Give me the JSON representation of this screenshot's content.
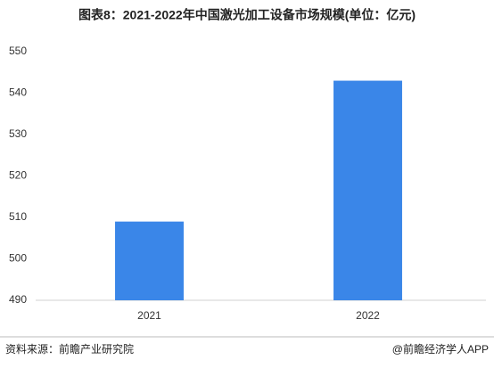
{
  "chart_data": {
    "type": "bar",
    "title": "图表8：2021-2022年中国激光加工设备市场规模(单位：亿元)",
    "categories": [
      "2021",
      "2022"
    ],
    "values": [
      509,
      543
    ],
    "color": "#3a86e8",
    "ylim": [
      490,
      550
    ],
    "yticks": [
      490,
      500,
      510,
      520,
      530,
      540,
      550
    ],
    "grid": false,
    "source": "资料来源：前瞻产业研究院",
    "credit": "@前瞻经济学人APP"
  }
}
